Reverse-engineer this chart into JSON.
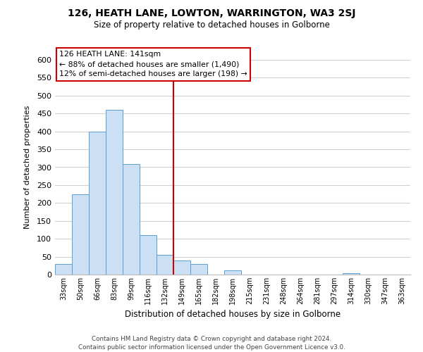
{
  "title": "126, HEATH LANE, LOWTON, WARRINGTON, WA3 2SJ",
  "subtitle": "Size of property relative to detached houses in Golborne",
  "xlabel": "Distribution of detached houses by size in Golborne",
  "ylabel": "Number of detached properties",
  "bar_labels": [
    "33sqm",
    "50sqm",
    "66sqm",
    "83sqm",
    "99sqm",
    "116sqm",
    "132sqm",
    "149sqm",
    "165sqm",
    "182sqm",
    "198sqm",
    "215sqm",
    "231sqm",
    "248sqm",
    "264sqm",
    "281sqm",
    "297sqm",
    "314sqm",
    "330sqm",
    "347sqm",
    "363sqm"
  ],
  "bar_heights": [
    30,
    225,
    400,
    460,
    308,
    110,
    55,
    40,
    30,
    0,
    12,
    0,
    0,
    0,
    0,
    0,
    0,
    3,
    0,
    0,
    0
  ],
  "bar_color": "#cce0f5",
  "bar_edge_color": "#5a9fd4",
  "vline_color": "#cc0000",
  "ylim": [
    0,
    600
  ],
  "yticks": [
    0,
    50,
    100,
    150,
    200,
    250,
    300,
    350,
    400,
    450,
    500,
    550,
    600
  ],
  "annotation_title": "126 HEATH LANE: 141sqm",
  "annotation_line1": "← 88% of detached houses are smaller (1,490)",
  "annotation_line2": "12% of semi-detached houses are larger (198) →",
  "annotation_box_color": "#ffffff",
  "annotation_box_edge": "#cc0000",
  "footer_line1": "Contains HM Land Registry data © Crown copyright and database right 2024.",
  "footer_line2": "Contains public sector information licensed under the Open Government Licence v3.0.",
  "background_color": "#ffffff",
  "grid_color": "#d0d0d0"
}
